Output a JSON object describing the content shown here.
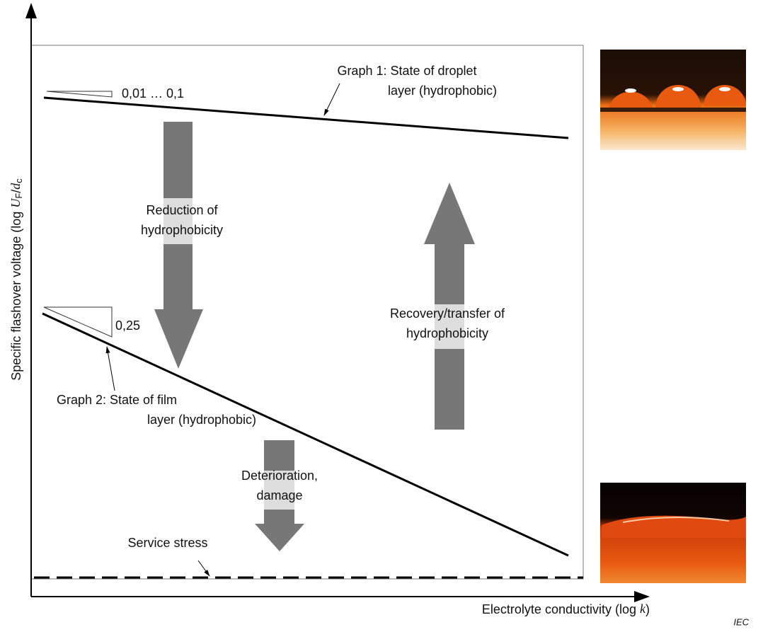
{
  "diagram": {
    "y_axis_label": {
      "text": "Specific flashover voltage  (log ",
      "var1": "U",
      "sub1": "F",
      "slash": "/",
      "var2": "d",
      "sub2": "c"
    },
    "x_axis_label": {
      "text": "Electrolyte conductivity  (log ",
      "var": "k",
      "close": ")"
    },
    "slope_1": "0,01 … 0,1",
    "slope_2": "0,25",
    "graph_1": [
      "Graph 1: State of droplet",
      "layer (hydrophobic)"
    ],
    "graph_2": [
      "Graph 2: State of film",
      "layer (hydrophobic)"
    ],
    "arrow_reduction": [
      "Reduction of",
      "hydrophobicity"
    ],
    "arrow_recovery": [
      "Recovery/transfer of",
      "hydrophobicity"
    ],
    "arrow_deterioration": [
      "Deterioration,",
      "damage"
    ],
    "service_stress": "Service stress",
    "source": "IEC"
  }
}
